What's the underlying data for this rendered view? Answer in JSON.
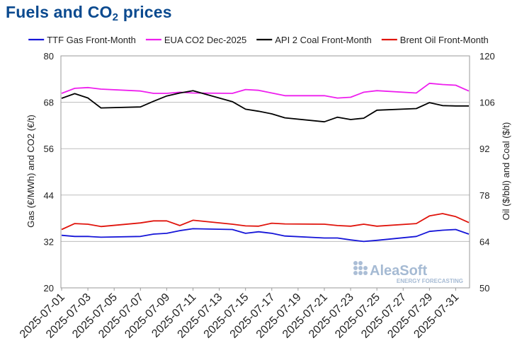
{
  "title": {
    "main": "Fuels and CO",
    "sub": "2",
    "tail": " prices"
  },
  "watermark": {
    "brand": "AleaSoft",
    "tagline": "ENERGY FORECASTING",
    "color": "#8fa9c9"
  },
  "chart_data": {
    "type": "line",
    "title": "Fuels and CO2 prices",
    "legend_position": "top",
    "grid": "horizontal",
    "left_axis": {
      "label": "Gas (€/MWh) and CO2 (€/t)",
      "ylim": [
        20,
        80
      ],
      "ticks": [
        20,
        32,
        44,
        56,
        68,
        80
      ]
    },
    "right_axis": {
      "label": "Oil ($/bbl) and Coal ($/t)",
      "ylim": [
        50,
        120
      ],
      "ticks": [
        50,
        64,
        78,
        92,
        106,
        120
      ]
    },
    "x_tick_labels": [
      "2025-07-01",
      "2025-07-03",
      "2025-07-05",
      "2025-07-07",
      "2025-07-09",
      "2025-07-11",
      "2025-07-13",
      "2025-07-15",
      "2025-07-17",
      "2025-07-19",
      "2025-07-21",
      "2025-07-23",
      "2025-07-25",
      "2025-07-27",
      "2025-07-29",
      "2025-07-31"
    ],
    "series": [
      {
        "name": "TTF Gas Front-Month",
        "axis": "left",
        "color": "#1515d8",
        "points": [
          [
            "2025-07-01",
            33.6
          ],
          [
            "2025-07-02",
            33.3
          ],
          [
            "2025-07-03",
            33.3
          ],
          [
            "2025-07-04",
            33.1
          ],
          [
            "2025-07-07",
            33.3
          ],
          [
            "2025-07-08",
            33.9
          ],
          [
            "2025-07-09",
            34.1
          ],
          [
            "2025-07-10",
            34.8
          ],
          [
            "2025-07-11",
            35.3
          ],
          [
            "2025-07-14",
            35.1
          ],
          [
            "2025-07-15",
            34.1
          ],
          [
            "2025-07-16",
            34.5
          ],
          [
            "2025-07-17",
            34.1
          ],
          [
            "2025-07-18",
            33.4
          ],
          [
            "2025-07-21",
            32.9
          ],
          [
            "2025-07-22",
            32.9
          ],
          [
            "2025-07-23",
            32.4
          ],
          [
            "2025-07-24",
            32.0
          ],
          [
            "2025-07-25",
            32.3
          ],
          [
            "2025-07-28",
            33.3
          ],
          [
            "2025-07-29",
            34.6
          ],
          [
            "2025-07-30",
            34.9
          ],
          [
            "2025-07-31",
            35.1
          ],
          [
            "2025-08-01",
            33.9
          ]
        ]
      },
      {
        "name": "EUA CO2 Dec-2025",
        "axis": "left",
        "color": "#ee1fee",
        "points": [
          [
            "2025-07-01",
            70.3
          ],
          [
            "2025-07-02",
            71.6
          ],
          [
            "2025-07-03",
            71.8
          ],
          [
            "2025-07-04",
            71.4
          ],
          [
            "2025-07-07",
            70.9
          ],
          [
            "2025-07-08",
            70.3
          ],
          [
            "2025-07-09",
            70.3
          ],
          [
            "2025-07-10",
            70.6
          ],
          [
            "2025-07-11",
            70.4
          ],
          [
            "2025-07-14",
            70.3
          ],
          [
            "2025-07-15",
            71.3
          ],
          [
            "2025-07-16",
            71.1
          ],
          [
            "2025-07-17",
            70.4
          ],
          [
            "2025-07-18",
            69.7
          ],
          [
            "2025-07-21",
            69.7
          ],
          [
            "2025-07-22",
            69.1
          ],
          [
            "2025-07-23",
            69.3
          ],
          [
            "2025-07-24",
            70.6
          ],
          [
            "2025-07-25",
            71.0
          ],
          [
            "2025-07-28",
            70.4
          ],
          [
            "2025-07-29",
            72.9
          ],
          [
            "2025-07-30",
            72.6
          ],
          [
            "2025-07-31",
            72.4
          ],
          [
            "2025-08-01",
            70.9
          ]
        ]
      },
      {
        "name": "API 2 Coal Front-Month",
        "axis": "right",
        "color": "#000000",
        "points": [
          [
            "2025-07-01",
            107.2
          ],
          [
            "2025-07-02",
            108.6
          ],
          [
            "2025-07-03",
            107.3
          ],
          [
            "2025-07-04",
            104.3
          ],
          [
            "2025-07-07",
            104.6
          ],
          [
            "2025-07-08",
            106.3
          ],
          [
            "2025-07-09",
            107.9
          ],
          [
            "2025-07-10",
            108.8
          ],
          [
            "2025-07-11",
            109.5
          ],
          [
            "2025-07-14",
            106.2
          ],
          [
            "2025-07-15",
            103.9
          ],
          [
            "2025-07-16",
            103.3
          ],
          [
            "2025-07-17",
            102.5
          ],
          [
            "2025-07-18",
            101.3
          ],
          [
            "2025-07-21",
            100.1
          ],
          [
            "2025-07-22",
            101.5
          ],
          [
            "2025-07-23",
            100.8
          ],
          [
            "2025-07-24",
            101.2
          ],
          [
            "2025-07-25",
            103.6
          ],
          [
            "2025-07-28",
            104.1
          ],
          [
            "2025-07-29",
            105.9
          ],
          [
            "2025-07-30",
            105.0
          ],
          [
            "2025-07-31",
            104.9
          ],
          [
            "2025-08-01",
            104.9
          ]
        ]
      },
      {
        "name": "Brent Oil Front-Month",
        "axis": "right",
        "color": "#e0140c",
        "points": [
          [
            "2025-07-01",
            67.6
          ],
          [
            "2025-07-02",
            69.4
          ],
          [
            "2025-07-03",
            69.2
          ],
          [
            "2025-07-04",
            68.5
          ],
          [
            "2025-07-07",
            69.6
          ],
          [
            "2025-07-08",
            70.2
          ],
          [
            "2025-07-09",
            70.2
          ],
          [
            "2025-07-10",
            68.8
          ],
          [
            "2025-07-11",
            70.4
          ],
          [
            "2025-07-14",
            69.2
          ],
          [
            "2025-07-15",
            68.7
          ],
          [
            "2025-07-16",
            68.6
          ],
          [
            "2025-07-17",
            69.5
          ],
          [
            "2025-07-18",
            69.3
          ],
          [
            "2025-07-21",
            69.2
          ],
          [
            "2025-07-22",
            68.8
          ],
          [
            "2025-07-23",
            68.6
          ],
          [
            "2025-07-24",
            69.2
          ],
          [
            "2025-07-25",
            68.6
          ],
          [
            "2025-07-28",
            69.4
          ],
          [
            "2025-07-29",
            71.7
          ],
          [
            "2025-07-30",
            72.4
          ],
          [
            "2025-07-31",
            71.5
          ],
          [
            "2025-08-01",
            69.7
          ]
        ]
      }
    ]
  }
}
